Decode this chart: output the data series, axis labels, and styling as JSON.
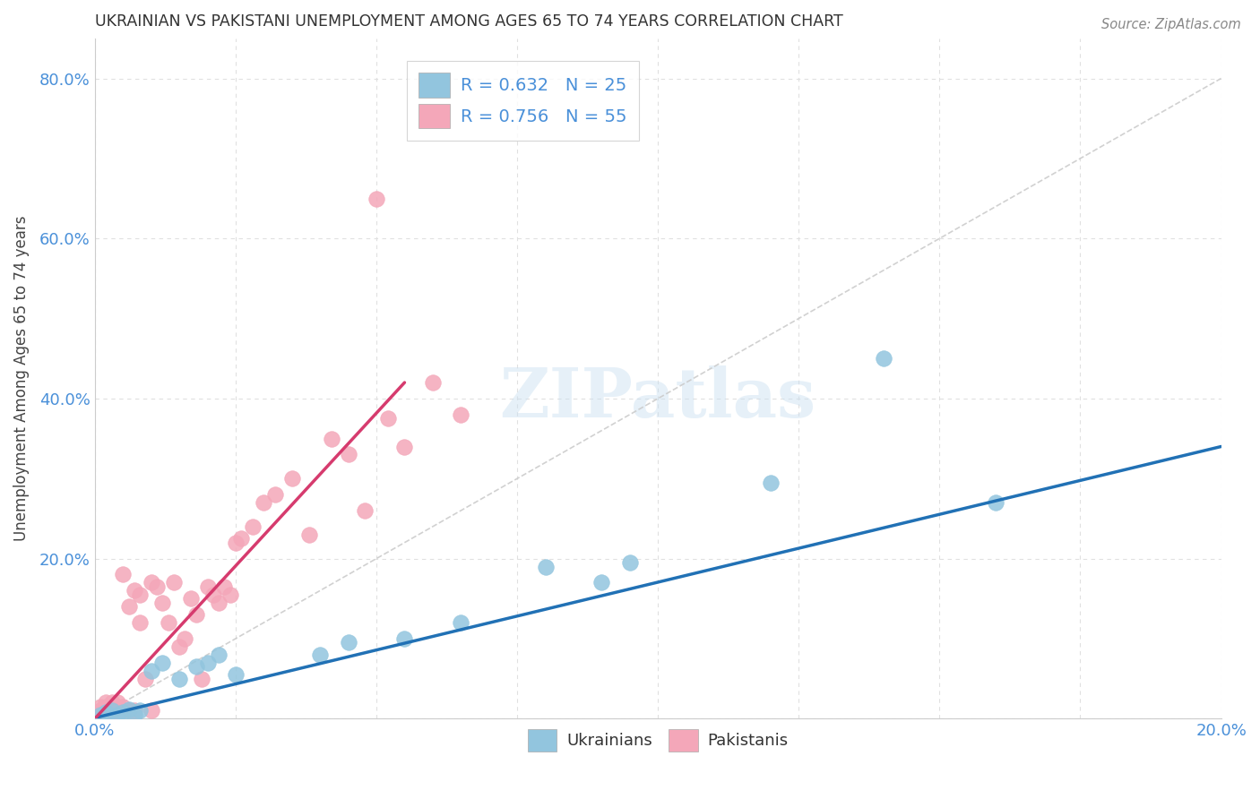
{
  "title": "UKRAINIAN VS PAKISTANI UNEMPLOYMENT AMONG AGES 65 TO 74 YEARS CORRELATION CHART",
  "source": "Source: ZipAtlas.com",
  "ylabel": "Unemployment Among Ages 65 to 74 years",
  "xlim": [
    0.0,
    0.2
  ],
  "ylim": [
    0.0,
    0.85
  ],
  "xtick_positions": [
    0.0,
    0.025,
    0.05,
    0.075,
    0.1,
    0.125,
    0.15,
    0.175,
    0.2
  ],
  "xtick_labels": [
    "0.0%",
    "",
    "",
    "",
    "",
    "",
    "",
    "",
    "20.0%"
  ],
  "ytick_positions": [
    0.0,
    0.2,
    0.4,
    0.6,
    0.8
  ],
  "ytick_labels": [
    "",
    "20.0%",
    "40.0%",
    "60.0%",
    "80.0%"
  ],
  "legend_r1": "R = 0.632   N = 25",
  "legend_r2": "R = 0.756   N = 55",
  "watermark": "ZIPatlas",
  "ukr_color": "#92c5de",
  "pak_color": "#f4a7b9",
  "ukr_line_color": "#2171b5",
  "pak_line_color": "#d63b6e",
  "diag_color": "#cccccc",
  "bg_color": "#ffffff",
  "grid_color": "#e0e0e0",
  "ukr_x": [
    0.001,
    0.002,
    0.003,
    0.004,
    0.005,
    0.006,
    0.007,
    0.008,
    0.01,
    0.012,
    0.015,
    0.018,
    0.02,
    0.022,
    0.025,
    0.04,
    0.045,
    0.055,
    0.065,
    0.08,
    0.09,
    0.095,
    0.12,
    0.14,
    0.16
  ],
  "ukr_y": [
    0.005,
    0.008,
    0.01,
    0.005,
    0.008,
    0.012,
    0.005,
    0.01,
    0.06,
    0.07,
    0.05,
    0.065,
    0.07,
    0.08,
    0.055,
    0.08,
    0.095,
    0.1,
    0.12,
    0.19,
    0.17,
    0.195,
    0.295,
    0.45,
    0.27
  ],
  "pak_x": [
    0.001,
    0.001,
    0.001,
    0.002,
    0.002,
    0.002,
    0.002,
    0.003,
    0.003,
    0.003,
    0.003,
    0.004,
    0.004,
    0.004,
    0.005,
    0.005,
    0.005,
    0.006,
    0.006,
    0.007,
    0.007,
    0.008,
    0.008,
    0.009,
    0.01,
    0.01,
    0.011,
    0.012,
    0.013,
    0.014,
    0.015,
    0.016,
    0.017,
    0.018,
    0.019,
    0.02,
    0.021,
    0.022,
    0.023,
    0.024,
    0.025,
    0.026,
    0.028,
    0.03,
    0.032,
    0.035,
    0.038,
    0.042,
    0.045,
    0.048,
    0.052,
    0.055,
    0.06,
    0.065,
    0.05
  ],
  "pak_y": [
    0.01,
    0.015,
    0.005,
    0.01,
    0.015,
    0.02,
    0.005,
    0.01,
    0.015,
    0.02,
    0.005,
    0.01,
    0.015,
    0.02,
    0.01,
    0.18,
    0.015,
    0.14,
    0.01,
    0.16,
    0.01,
    0.12,
    0.155,
    0.05,
    0.17,
    0.01,
    0.165,
    0.145,
    0.12,
    0.17,
    0.09,
    0.1,
    0.15,
    0.13,
    0.05,
    0.165,
    0.155,
    0.145,
    0.165,
    0.155,
    0.22,
    0.225,
    0.24,
    0.27,
    0.28,
    0.3,
    0.23,
    0.35,
    0.33,
    0.26,
    0.375,
    0.34,
    0.42,
    0.38,
    0.65
  ],
  "ukr_trendline": [
    0.0,
    0.001,
    0.2,
    0.34
  ],
  "pak_trendline": [
    0.0,
    0.0,
    0.055,
    0.42
  ]
}
